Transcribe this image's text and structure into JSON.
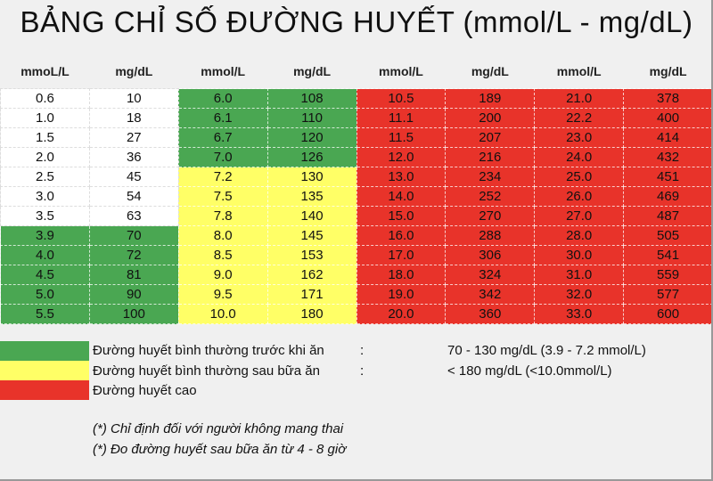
{
  "title": "BẢNG CHỈ SỐ ĐƯỜNG HUYẾT (mmol/L - mg/dL)",
  "headers": [
    "mmoL/L",
    "mg/dL",
    "mmol/L",
    "mg/dL",
    "mmol/L",
    "mg/dL",
    "mmol/L",
    "mg/dL"
  ],
  "colors": {
    "white": "#ffffff",
    "green": "#4aa752",
    "yellow": "#ffff66",
    "red": "#e8332a"
  },
  "rows": [
    {
      "zones": [
        "white",
        "green",
        "red",
        "red"
      ],
      "values": [
        "0.6",
        "10",
        "6.0",
        "108",
        "10.5",
        "189",
        "21.0",
        "378"
      ]
    },
    {
      "zones": [
        "white",
        "green",
        "red",
        "red"
      ],
      "values": [
        "1.0",
        "18",
        "6.1",
        "110",
        "11.1",
        "200",
        "22.2",
        "400"
      ]
    },
    {
      "zones": [
        "white",
        "green",
        "red",
        "red"
      ],
      "values": [
        "1.5",
        "27",
        "6.7",
        "120",
        "11.5",
        "207",
        "23.0",
        "414"
      ]
    },
    {
      "zones": [
        "white",
        "green",
        "red",
        "red"
      ],
      "values": [
        "2.0",
        "36",
        "7.0",
        "126",
        "12.0",
        "216",
        "24.0",
        "432"
      ]
    },
    {
      "zones": [
        "white",
        "yellow",
        "red",
        "red"
      ],
      "values": [
        "2.5",
        "45",
        "7.2",
        "130",
        "13.0",
        "234",
        "25.0",
        "451"
      ]
    },
    {
      "zones": [
        "white",
        "yellow",
        "red",
        "red"
      ],
      "values": [
        "3.0",
        "54",
        "7.5",
        "135",
        "14.0",
        "252",
        "26.0",
        "469"
      ]
    },
    {
      "zones": [
        "white",
        "yellow",
        "red",
        "red"
      ],
      "values": [
        "3.5",
        "63",
        "7.8",
        "140",
        "15.0",
        "270",
        "27.0",
        "487"
      ]
    },
    {
      "zones": [
        "green",
        "yellow",
        "red",
        "red"
      ],
      "values": [
        "3.9",
        "70",
        "8.0",
        "145",
        "16.0",
        "288",
        "28.0",
        "505"
      ]
    },
    {
      "zones": [
        "green",
        "yellow",
        "red",
        "red"
      ],
      "values": [
        "4.0",
        "72",
        "8.5",
        "153",
        "17.0",
        "306",
        "30.0",
        "541"
      ]
    },
    {
      "zones": [
        "green",
        "yellow",
        "red",
        "red"
      ],
      "values": [
        "4.5",
        "81",
        "9.0",
        "162",
        "18.0",
        "324",
        "31.0",
        "559"
      ]
    },
    {
      "zones": [
        "green",
        "yellow",
        "red",
        "red"
      ],
      "values": [
        "5.0",
        "90",
        "9.5",
        "171",
        "19.0",
        "342",
        "32.0",
        "577"
      ]
    },
    {
      "zones": [
        "green",
        "yellow",
        "red",
        "red"
      ],
      "values": [
        "5.5",
        "100",
        "10.0",
        "180",
        "20.0",
        "360",
        "33.0",
        "600"
      ]
    }
  ],
  "legend": [
    {
      "color": "green",
      "label": "Đường huyết bình thường trước khi ăn",
      "colon": ":",
      "value": "70 - 130 mg/dL (3.9 - 7.2 mmol/L)"
    },
    {
      "color": "yellow",
      "label": "Đường huyết bình thường sau bữa ăn",
      "colon": ":",
      "value": "< 180 mg/dL (<10.0mmol/L)"
    },
    {
      "color": "red",
      "label": "Đường huyết cao"
    }
  ],
  "notes": [
    "(*) Chỉ định đối với người không mang thai",
    "(*) Đo đường huyết sau bữa ăn từ 4 - 8 giờ"
  ]
}
